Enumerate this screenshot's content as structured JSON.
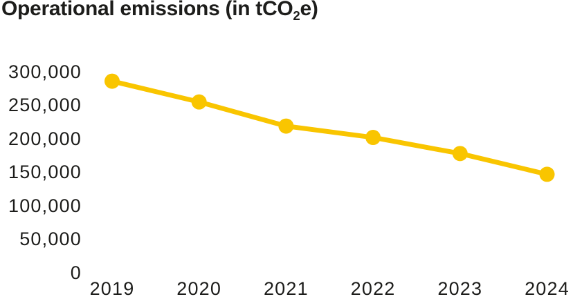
{
  "title": {
    "prefix": "Operational emissions (in tCO",
    "subscript": "2",
    "suffix": "e)"
  },
  "colors": {
    "line": "#F9C500",
    "text": "#1D1D1B",
    "background": "#FFFFFF"
  },
  "chart_data": {
    "type": "line",
    "title": "Operational emissions (in tCO2e)",
    "unit": "tCO2e",
    "categories": [
      "2019",
      "2020",
      "2021",
      "2022",
      "2023",
      "2024"
    ],
    "series": [
      {
        "name": "Operational emissions",
        "values": [
          286000,
          255000,
          219000,
          202000,
          178000,
          147000
        ]
      }
    ],
    "ylim": [
      0,
      300000
    ],
    "y_tick_step": 50000,
    "y_ticks": [
      {
        "label": "300,000",
        "value": 300000
      },
      {
        "label": "250,000",
        "value": 250000
      },
      {
        "label": "200,000",
        "value": 200000
      },
      {
        "label": "150,000",
        "value": 150000
      },
      {
        "label": "100,000",
        "value": 100000
      },
      {
        "label": "50,000",
        "value": 50000
      },
      {
        "label": "0",
        "value": 0
      }
    ],
    "xlabel": "",
    "ylabel": "",
    "grid": false,
    "axis_lines": false,
    "legend": "none",
    "line_color": "#F9C500",
    "marker": "circle"
  }
}
